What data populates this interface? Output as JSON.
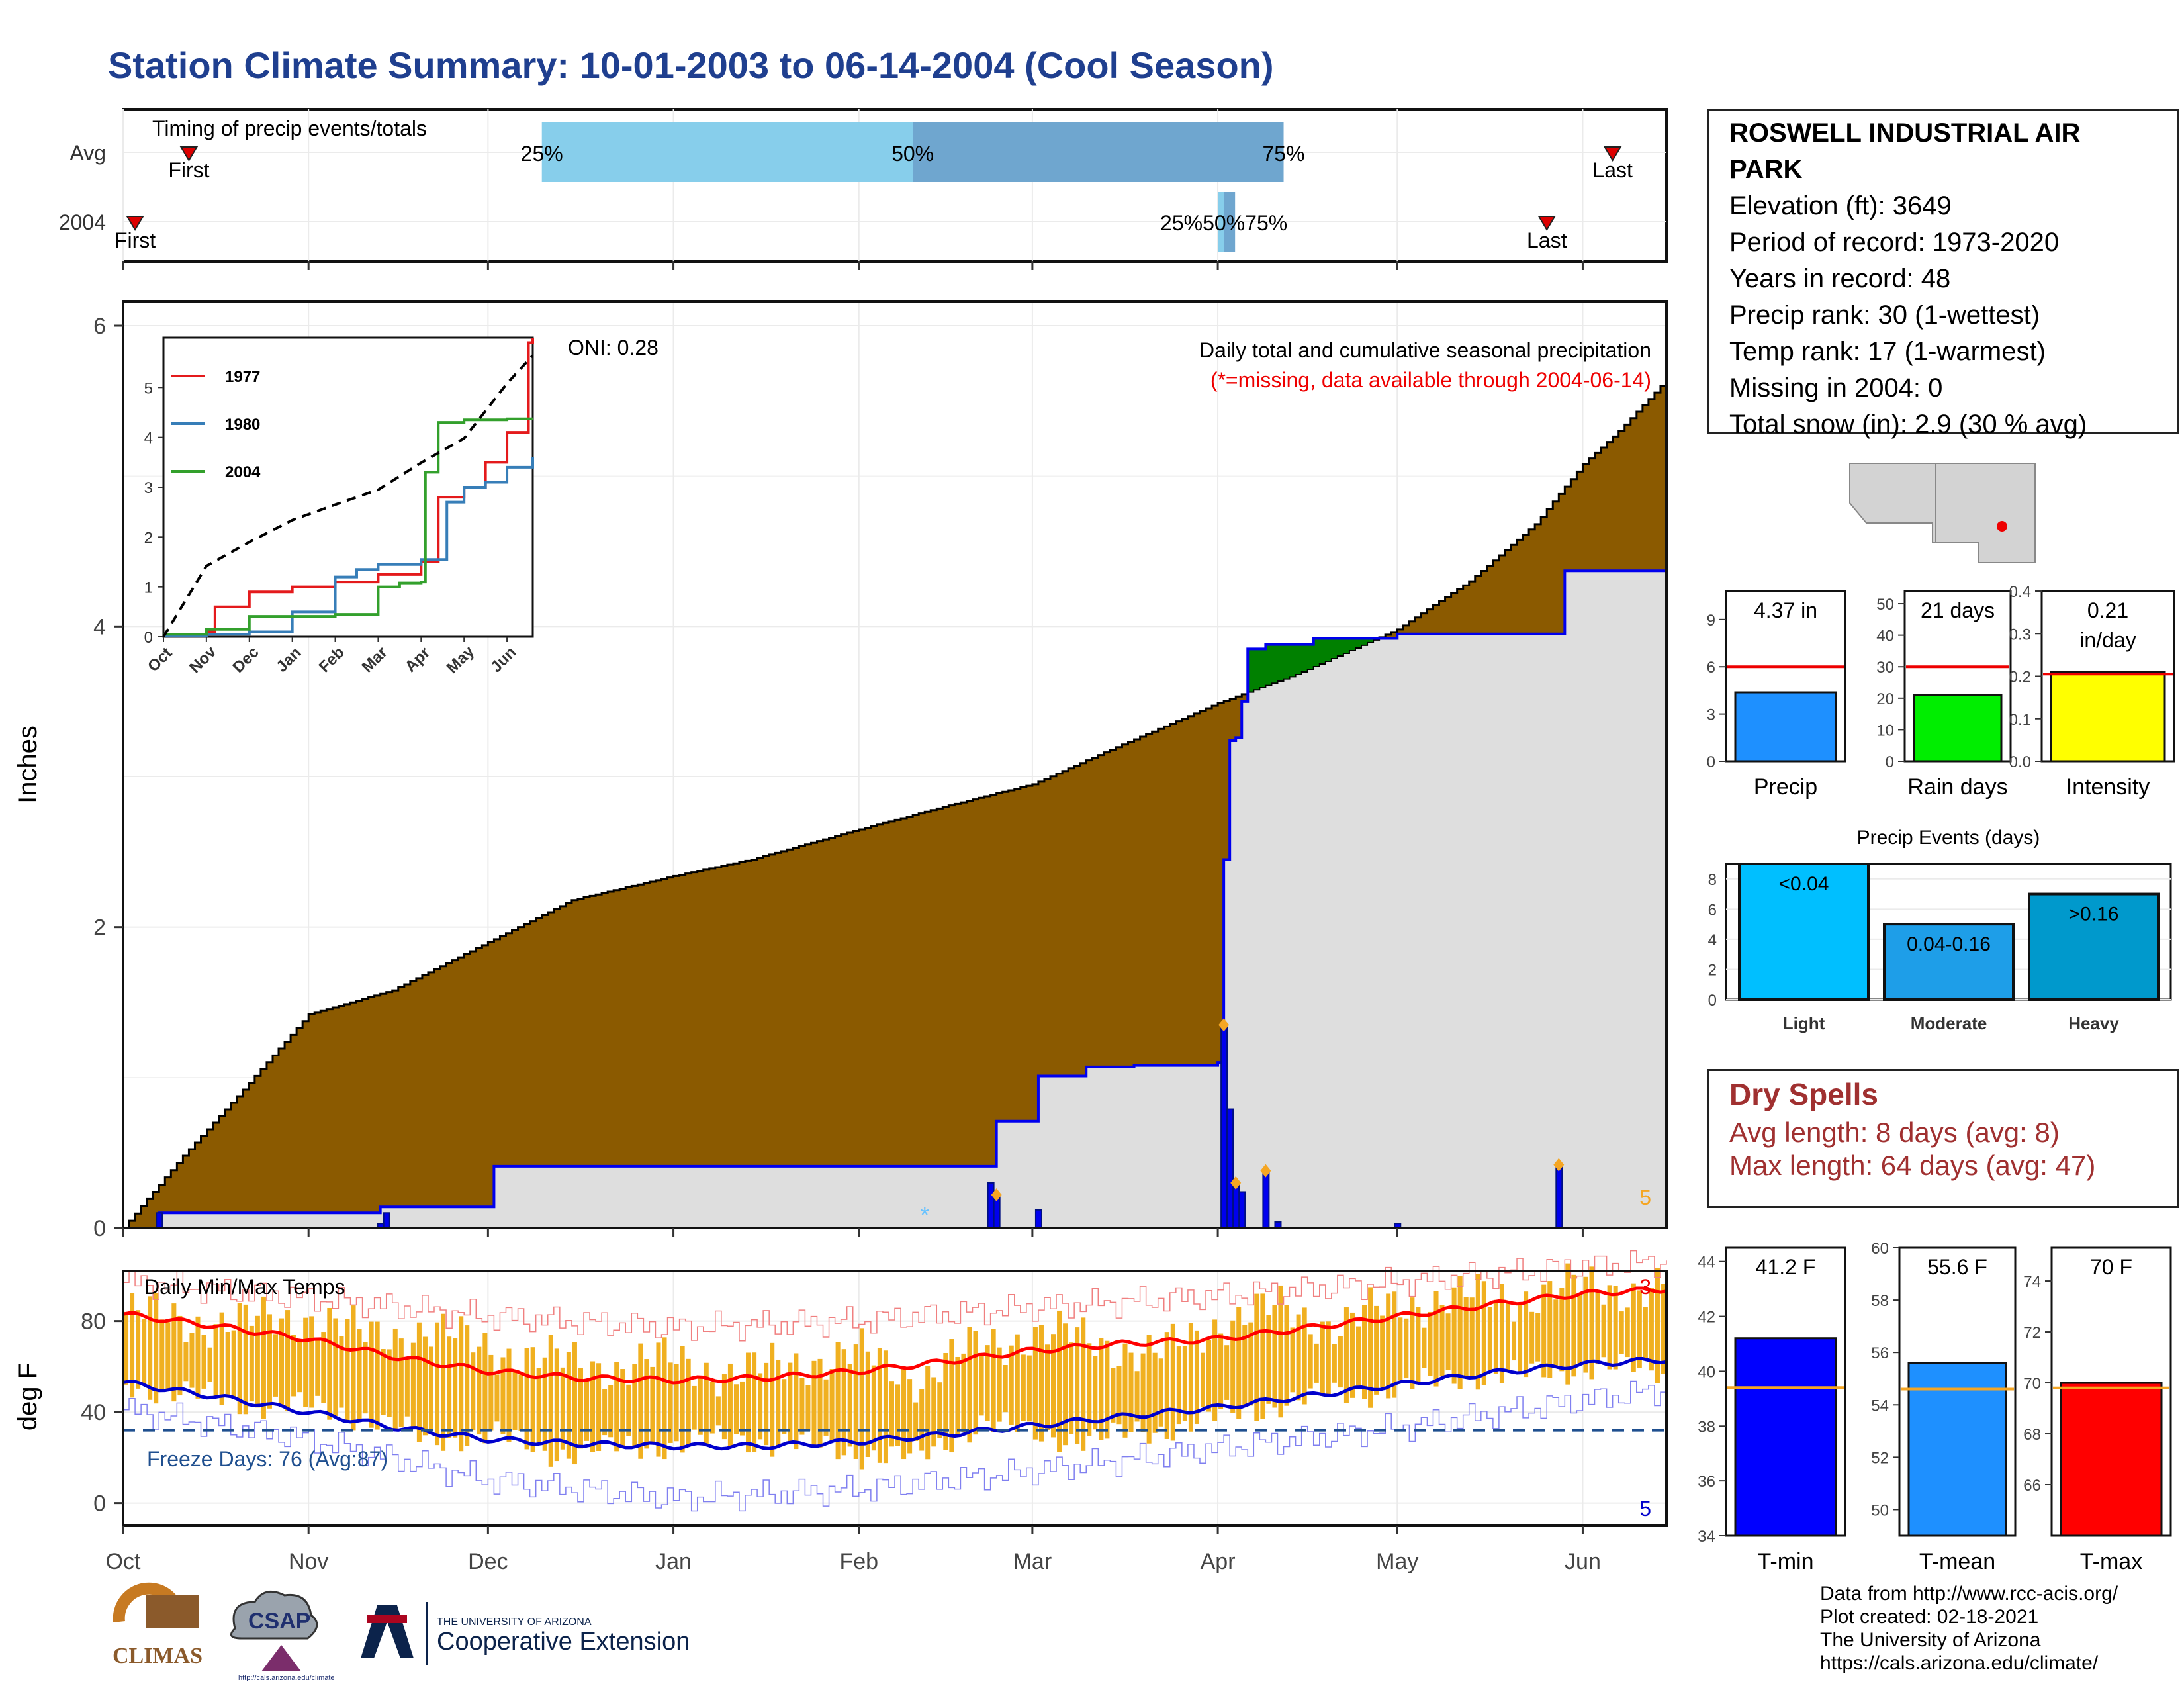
{
  "title": "Station Climate Summary: 10-01-2003 to 06-14-2004 (Cool Season)",
  "station": {
    "name": "ROSWELL INDUSTRIAL AIR PARK",
    "lines": [
      "Elevation (ft): 3649",
      "Period of record: 1973-2020",
      "Years in record: 48",
      "Precip rank: 30 (1-wettest)",
      "Temp rank: 17 (1-warmest)",
      "Missing in 2004: 0",
      "Total snow (in): 2.9 (30 % avg)"
    ]
  },
  "dry_spells": {
    "heading": "Dry Spells",
    "avg": "Avg length: 8 days (avg: 8)",
    "max": "Max length: 64 days (avg: 47)"
  },
  "footer": [
    "Data from http://www.rcc-acis.org/",
    "Plot created: 02-18-2021",
    "The University of Arizona",
    "https://cals.arizona.edu/climate/"
  ],
  "logos": {
    "climas": "CLIMAS",
    "csap": "CSAP",
    "csap_url": "http://cals.arizona.edu/climate",
    "ua_small": "THE UNIVERSITY OF ARIZONA",
    "ua_big": "Cooperative Extension"
  },
  "colors": {
    "title": "#1f3f8f",
    "cum_avg_fill": "#8b5a00",
    "cum_obs_fill": "#dedede",
    "obs_line": "#0000ee",
    "surplus": "#008000",
    "tmax": "#ff0000",
    "tmin": "#0000cc",
    "bars": "#f0b020"
  },
  "chart_data": [
    {
      "type": "bar",
      "name": "timing",
      "title": "Timing of precip events/totals",
      "rows": [
        "Avg",
        "2004"
      ],
      "avg": {
        "first": "Oct 12",
        "p25": "Dec 10",
        "p50": "Feb 10",
        "p75": "Apr 12",
        "last": "Jun 6"
      },
      "year": {
        "first": "Oct 3",
        "p25": "Apr 1",
        "p50": "Apr 2",
        "p75": "Apr 3",
        "last": "May 26"
      },
      "labels": {
        "first": "First",
        "last": "Last",
        "p25": "25%",
        "p50": "50%",
        "p75": "75%",
        "year_pct": "25%50%75%"
      }
    },
    {
      "type": "area",
      "name": "cumulative_precip",
      "title": "Daily total and cumulative seasonal precipitation",
      "subtitle": "(*=missing, data available through 2004-06-14)",
      "oni": "ONI: 0.28",
      "ylabel": "Inches",
      "ylim": [
        0,
        6.2
      ],
      "yticks": [
        "0",
        "2",
        "4",
        "6"
      ],
      "xlim_days": [
        0,
        258
      ],
      "x_months": [
        "Oct",
        "Nov",
        "Dec",
        "Jan",
        "Feb",
        "Mar",
        "Apr",
        "May",
        "Jun"
      ],
      "month_start_day": [
        0,
        31,
        61,
        92,
        123,
        152,
        183,
        213,
        244
      ],
      "corner_label": "5",
      "avg_cumulative": {
        "day": [
          0,
          10,
          20,
          31,
          45,
          61,
          75,
          92,
          105,
          123,
          137,
          152,
          165,
          183,
          196,
          213,
          225,
          236,
          244,
          250,
          258
        ],
        "value": [
          0,
          0.48,
          0.92,
          1.42,
          1.58,
          1.9,
          2.18,
          2.34,
          2.45,
          2.65,
          2.8,
          2.95,
          3.18,
          3.49,
          3.68,
          3.98,
          4.3,
          4.68,
          5.08,
          5.3,
          5.64
        ]
      },
      "obs_cumulative": {
        "day": [
          0,
          6,
          43,
          62,
          145,
          146,
          153,
          161,
          169,
          183,
          184,
          185,
          186,
          187,
          188,
          191,
          199,
          213,
          240,
          241,
          258
        ],
        "value": [
          0,
          0.1,
          0.14,
          0.41,
          0.41,
          0.71,
          1.01,
          1.07,
          1.08,
          1.1,
          2.45,
          3.24,
          3.26,
          3.5,
          3.85,
          3.88,
          3.92,
          3.95,
          3.95,
          4.37,
          4.37
        ]
      },
      "daily_precip": {
        "day": [
          6,
          43,
          44,
          145,
          146,
          153,
          184,
          185,
          186,
          187,
          191,
          193,
          213,
          240
        ],
        "value": [
          0.1,
          0.03,
          0.1,
          0.3,
          0.22,
          0.12,
          1.35,
          0.79,
          0.3,
          0.24,
          0.38,
          0.04,
          0.03,
          0.42
        ]
      },
      "missing_day": [
        134
      ],
      "event_markers_day": [
        146,
        184,
        186,
        191,
        240
      ]
    },
    {
      "type": "line",
      "name": "inset_cumulative",
      "x_labels": [
        "Oct",
        "Nov",
        "Dec",
        "Jan",
        "Feb",
        "Mar",
        "Apr",
        "May",
        "Jun"
      ],
      "y_ticks": [
        "0",
        "1",
        "2",
        "3",
        "4",
        "5"
      ],
      "ylim": [
        0,
        6
      ],
      "legend": "top-left",
      "series": [
        {
          "name": "1977",
          "color": "#e41a1c",
          "month": [
            0,
            1,
            1.2,
            2,
            3,
            3.5,
            4,
            5,
            6,
            6.4,
            7,
            7.5,
            8,
            8.5,
            8.6
          ],
          "value": [
            0.05,
            0.1,
            0.6,
            0.9,
            1.0,
            1.0,
            1.1,
            1.25,
            1.5,
            2.8,
            3.0,
            3.5,
            4.1,
            5.9,
            6.0
          ]
        },
        {
          "name": "1980",
          "color": "#377eb8",
          "month": [
            0,
            1,
            2,
            3,
            4,
            4.5,
            5,
            6,
            6.6,
            7,
            7.5,
            8,
            8.6
          ],
          "value": [
            0.02,
            0.05,
            0.1,
            0.5,
            1.2,
            1.35,
            1.45,
            1.55,
            2.7,
            3.0,
            3.1,
            3.4,
            3.6
          ]
        },
        {
          "name": "2004",
          "color": "#33a02c",
          "month": [
            0,
            1,
            2,
            4,
            5,
            5.5,
            6,
            6.1,
            6.4,
            7,
            8,
            8.6
          ],
          "value": [
            0.05,
            0.15,
            0.41,
            0.45,
            1.0,
            1.08,
            1.1,
            3.3,
            4.3,
            4.35,
            4.37,
            4.37
          ]
        },
        {
          "name": "Avg",
          "color": "#000000",
          "dashed": true,
          "month": [
            0,
            1,
            2,
            3,
            4,
            5,
            6,
            7,
            8,
            8.6
          ],
          "value": [
            0,
            1.42,
            1.9,
            2.34,
            2.65,
            2.95,
            3.49,
            3.98,
            5.08,
            5.64
          ]
        }
      ]
    },
    {
      "type": "bar",
      "name": "season_totals",
      "panels": [
        {
          "xlabel": "Precip",
          "label": "4.37 in",
          "value": 4.37,
          "avg": 6,
          "ylim": [
            0,
            10.8
          ],
          "yticks": [
            0,
            3,
            6,
            9
          ],
          "color": "#1e90ff"
        },
        {
          "xlabel": "Rain days",
          "label": "21 days",
          "value": 21,
          "avg": 30,
          "ylim": [
            0,
            54
          ],
          "yticks": [
            0,
            10,
            20,
            30,
            40,
            50
          ],
          "color": "#00ee00"
        },
        {
          "xlabel": "Intensity",
          "label": "0.21\nin/day",
          "value": 0.21,
          "avg": 0.205,
          "ylim": [
            0,
            0.4
          ],
          "yticks": [
            0.0,
            0.1,
            0.2,
            0.3,
            0.4
          ],
          "color": "#ffff00"
        }
      ]
    },
    {
      "type": "bar",
      "name": "precip_events",
      "title": "Precip Events (days)",
      "categories": [
        "Light",
        "Moderate",
        "Heavy"
      ],
      "bar_labels": [
        "<0.04",
        "0.04-0.16",
        ">0.16"
      ],
      "values": [
        9,
        5,
        7
      ],
      "ylim": [
        0,
        9
      ],
      "yticks": [
        0,
        2,
        4,
        6,
        8
      ],
      "colors": [
        "#00bfff",
        "#1e9ee8",
        "#0099cc"
      ]
    },
    {
      "type": "line",
      "name": "daily_temps",
      "title": "Daily Min/Max Temps",
      "ylabel": "deg F",
      "ylim": [
        -10,
        102
      ],
      "yticks": [
        "0",
        "40",
        "80"
      ],
      "freeze_label": "Freeze Days: 76 (Avg:87)",
      "freeze_line": 32,
      "top_right": "3",
      "bottom_right": "5",
      "x_months": [
        "Oct",
        "Nov",
        "Dec",
        "Jan",
        "Feb",
        "Mar",
        "Apr",
        "May",
        "Jun"
      ],
      "avg_max": {
        "day": [
          0,
          15,
          31,
          46,
          61,
          76,
          92,
          107,
          123,
          137,
          152,
          167,
          183,
          198,
          213,
          228,
          244,
          258
        ],
        "value": [
          83,
          78,
          72,
          64,
          58,
          55,
          54,
          55,
          58,
          62,
          67,
          70,
          72,
          77,
          82,
          87,
          92,
          94
        ]
      },
      "avg_min": {
        "day": [
          0,
          15,
          31,
          46,
          61,
          76,
          92,
          107,
          123,
          137,
          152,
          167,
          183,
          198,
          213,
          228,
          244,
          258
        ],
        "value": [
          53,
          47,
          40,
          33,
          28,
          26,
          25,
          25,
          27,
          30,
          34,
          38,
          42,
          47,
          52,
          57,
          61,
          63
        ]
      },
      "rec_max": {
        "day": [
          0,
          31,
          61,
          92,
          123,
          152,
          183,
          213,
          244,
          258
        ],
        "value": [
          97,
          90,
          82,
          77,
          80,
          86,
          91,
          97,
          104,
          106
        ]
      },
      "rec_min": {
        "day": [
          0,
          31,
          61,
          92,
          123,
          152,
          183,
          213,
          244,
          258
        ],
        "value": [
          41,
          28,
          10,
          2,
          6,
          14,
          24,
          33,
          45,
          50
        ]
      },
      "obs_tmax": {
        "day": [
          0,
          10,
          20,
          31,
          40,
          50,
          61,
          72,
          82,
          92,
          102,
          112,
          123,
          133,
          143,
          152,
          162,
          172,
          183,
          193,
          203,
          213,
          223,
          233,
          244,
          258
        ],
        "value": [
          84,
          80,
          79,
          82,
          73,
          76,
          68,
          62,
          60,
          63,
          56,
          62,
          65,
          55,
          70,
          74,
          72,
          64,
          80,
          85,
          78,
          88,
          90,
          91,
          95,
          94
        ]
      },
      "obs_tmin": {
        "day": [
          0,
          10,
          20,
          31,
          40,
          50,
          61,
          72,
          82,
          92,
          102,
          112,
          123,
          133,
          143,
          152,
          162,
          172,
          183,
          193,
          203,
          213,
          223,
          233,
          244,
          258
        ],
        "value": [
          52,
          48,
          44,
          42,
          38,
          28,
          30,
          22,
          24,
          26,
          28,
          26,
          22,
          20,
          36,
          30,
          28,
          32,
          38,
          44,
          48,
          50,
          56,
          56,
          60,
          58
        ]
      }
    },
    {
      "type": "bar",
      "name": "temp_summary",
      "panels": [
        {
          "xlabel": "T-min",
          "label": "41.2 F",
          "value": 41.2,
          "avg": 39.4,
          "ylim": [
            34,
            44.5
          ],
          "yticks": [
            34,
            36,
            38,
            40,
            42,
            44
          ],
          "color": "#0000ff"
        },
        {
          "xlabel": "T-mean",
          "label": "55.6 F",
          "value": 55.6,
          "avg": 54.6,
          "ylim": [
            49,
            60
          ],
          "yticks": [
            50,
            52,
            54,
            56,
            58,
            60
          ],
          "color": "#1e90ff"
        },
        {
          "xlabel": "T-max",
          "label": "70 F",
          "value": 70,
          "avg": 69.8,
          "ylim": [
            64,
            75.3
          ],
          "yticks": [
            66,
            68,
            70,
            72,
            74
          ],
          "color": "#ff0000"
        }
      ]
    }
  ]
}
